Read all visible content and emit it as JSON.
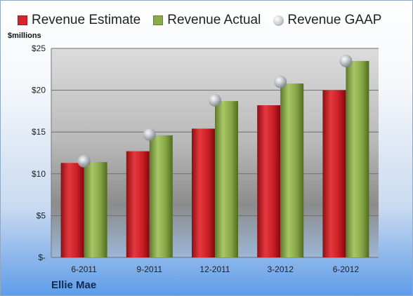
{
  "unit_label": "$millions",
  "brand": "Ellie Mae",
  "legend": [
    {
      "label": "Revenue Estimate",
      "color": "#d0252b",
      "kind": "bar"
    },
    {
      "label": "Revenue Actual",
      "color": "#8aab4a",
      "kind": "bar"
    },
    {
      "label": "Revenue GAAP",
      "color": "#c0c4ca",
      "kind": "dot"
    }
  ],
  "chart_data": {
    "type": "bar",
    "categories": [
      "6-2011",
      "9-2011",
      "12-2011",
      "3-2012",
      "6-2012"
    ],
    "series": [
      {
        "name": "Revenue Estimate",
        "type": "bar",
        "color": "#d0252b",
        "values": [
          11.3,
          12.7,
          15.4,
          18.2,
          20.0
        ]
      },
      {
        "name": "Revenue Actual",
        "type": "bar",
        "color": "#8aab4a",
        "values": [
          11.4,
          14.6,
          18.7,
          20.8,
          23.5
        ]
      },
      {
        "name": "Revenue GAAP",
        "type": "scatter",
        "color": "#c0c4ca",
        "values": [
          11.5,
          14.7,
          18.8,
          21.0,
          23.5
        ]
      }
    ],
    "ylim": [
      0,
      25
    ],
    "yticks": [
      0,
      5,
      10,
      15,
      20,
      25
    ],
    "ytick_labels": [
      "$-",
      "$5",
      "$10",
      "$15",
      "$20",
      "$25"
    ],
    "ylabel": "$millions",
    "xlabel": "",
    "grid": true,
    "legend_position": "top"
  }
}
